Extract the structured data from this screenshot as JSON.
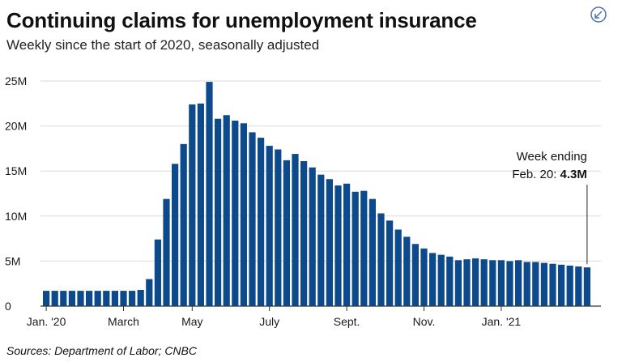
{
  "header": {
    "title": "Continuing claims for unemployment insurance",
    "subtitle": "Weekly since the start of 2020, seasonally adjusted"
  },
  "footer": {
    "source": "Sources:  Department of Labor; CNBC"
  },
  "icons": {
    "corner": "collapse-arrows-icon"
  },
  "colors": {
    "bar": "#0d4a8c",
    "grid": "#d9d9d9",
    "axis": "#333333",
    "text": "#1a1a1a",
    "icon": "#4a6fb5"
  },
  "chart_data": {
    "type": "bar",
    "title": "Continuing claims for unemployment insurance",
    "subtitle": "Weekly since the start of 2020, seasonally adjusted",
    "xlabel": "",
    "ylabel": "",
    "ylim": [
      0,
      25
    ],
    "yticks": [
      0,
      5,
      10,
      15,
      20,
      25
    ],
    "ytick_labels": [
      "0",
      "5M",
      "10M",
      "15M",
      "20M",
      "25M"
    ],
    "x_ticks": [
      {
        "label": "Jan. '20",
        "bar_index": 0
      },
      {
        "label": "March",
        "bar_index": 9
      },
      {
        "label": "May",
        "bar_index": 17
      },
      {
        "label": "July",
        "bar_index": 26
      },
      {
        "label": "Sept.",
        "bar_index": 35
      },
      {
        "label": "Nov.",
        "bar_index": 44
      },
      {
        "label": "Jan. '21",
        "bar_index": 53
      }
    ],
    "grid": true,
    "series": [
      {
        "values": [
          1.7,
          1.7,
          1.7,
          1.7,
          1.7,
          1.7,
          1.7,
          1.7,
          1.7,
          1.7,
          1.7,
          1.8,
          3.0,
          7.4,
          11.9,
          15.8,
          18.0,
          22.4,
          22.5,
          24.9,
          20.8,
          21.2,
          20.6,
          20.3,
          19.3,
          18.7,
          17.8,
          17.4,
          16.2,
          16.9,
          16.1,
          15.4,
          14.6,
          14.1,
          13.4,
          13.6,
          12.7,
          12.8,
          11.9,
          10.3,
          9.5,
          8.5,
          7.7,
          6.9,
          6.4,
          5.9,
          5.7,
          5.5,
          5.1,
          5.2,
          5.3,
          5.2,
          5.1,
          5.1,
          5.0,
          5.1,
          4.9,
          4.9,
          4.8,
          4.7,
          4.6,
          4.5,
          4.4,
          4.3
        ],
        "color": "#0d4a8c"
      }
    ],
    "annotation": {
      "bar_index": 63,
      "line1": "Week ending",
      "line2_prefix": "Feb. 20: ",
      "line2_value": "4.3M"
    },
    "legend": "none"
  }
}
